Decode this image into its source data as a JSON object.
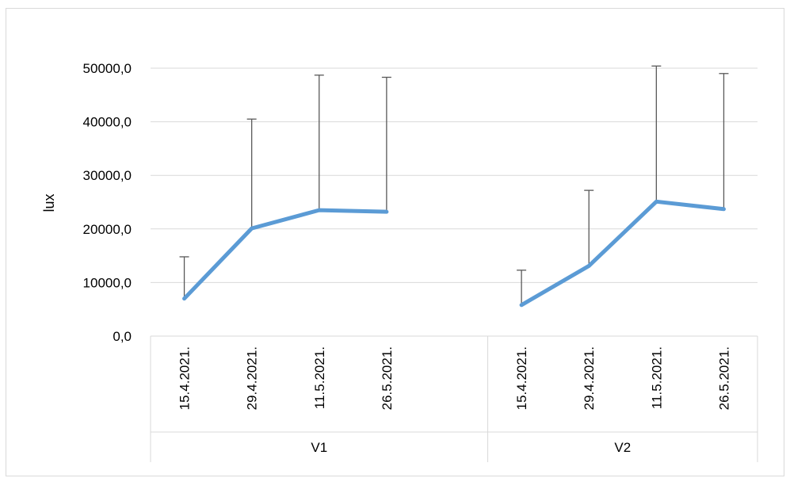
{
  "chart_data": {
    "type": "line",
    "ylabel": "lux",
    "ylim": [
      0,
      50000
    ],
    "ytick_labels": [
      "0,0",
      "10000,0",
      "20000,0",
      "30000,0",
      "40000,0",
      "50000,0"
    ],
    "grid": true,
    "groups": [
      {
        "name": "V1",
        "categories": [
          "15.4.2021.",
          "29.4.2021.",
          "11.5.2021.",
          "26.5.2021."
        ]
      },
      {
        "name": "V2",
        "categories": [
          "15.4.2021.",
          "29.4.2021.",
          "11.5.2021.",
          "26.5.2021."
        ]
      }
    ],
    "series": [
      {
        "color": "#5b9bd5",
        "values": [
          7000,
          20100,
          23500,
          23200,
          null,
          5800,
          13100,
          25100,
          23700
        ],
        "error_plus": [
          7800,
          20400,
          25200,
          25100,
          null,
          6500,
          14100,
          25300,
          25300
        ]
      }
    ]
  }
}
